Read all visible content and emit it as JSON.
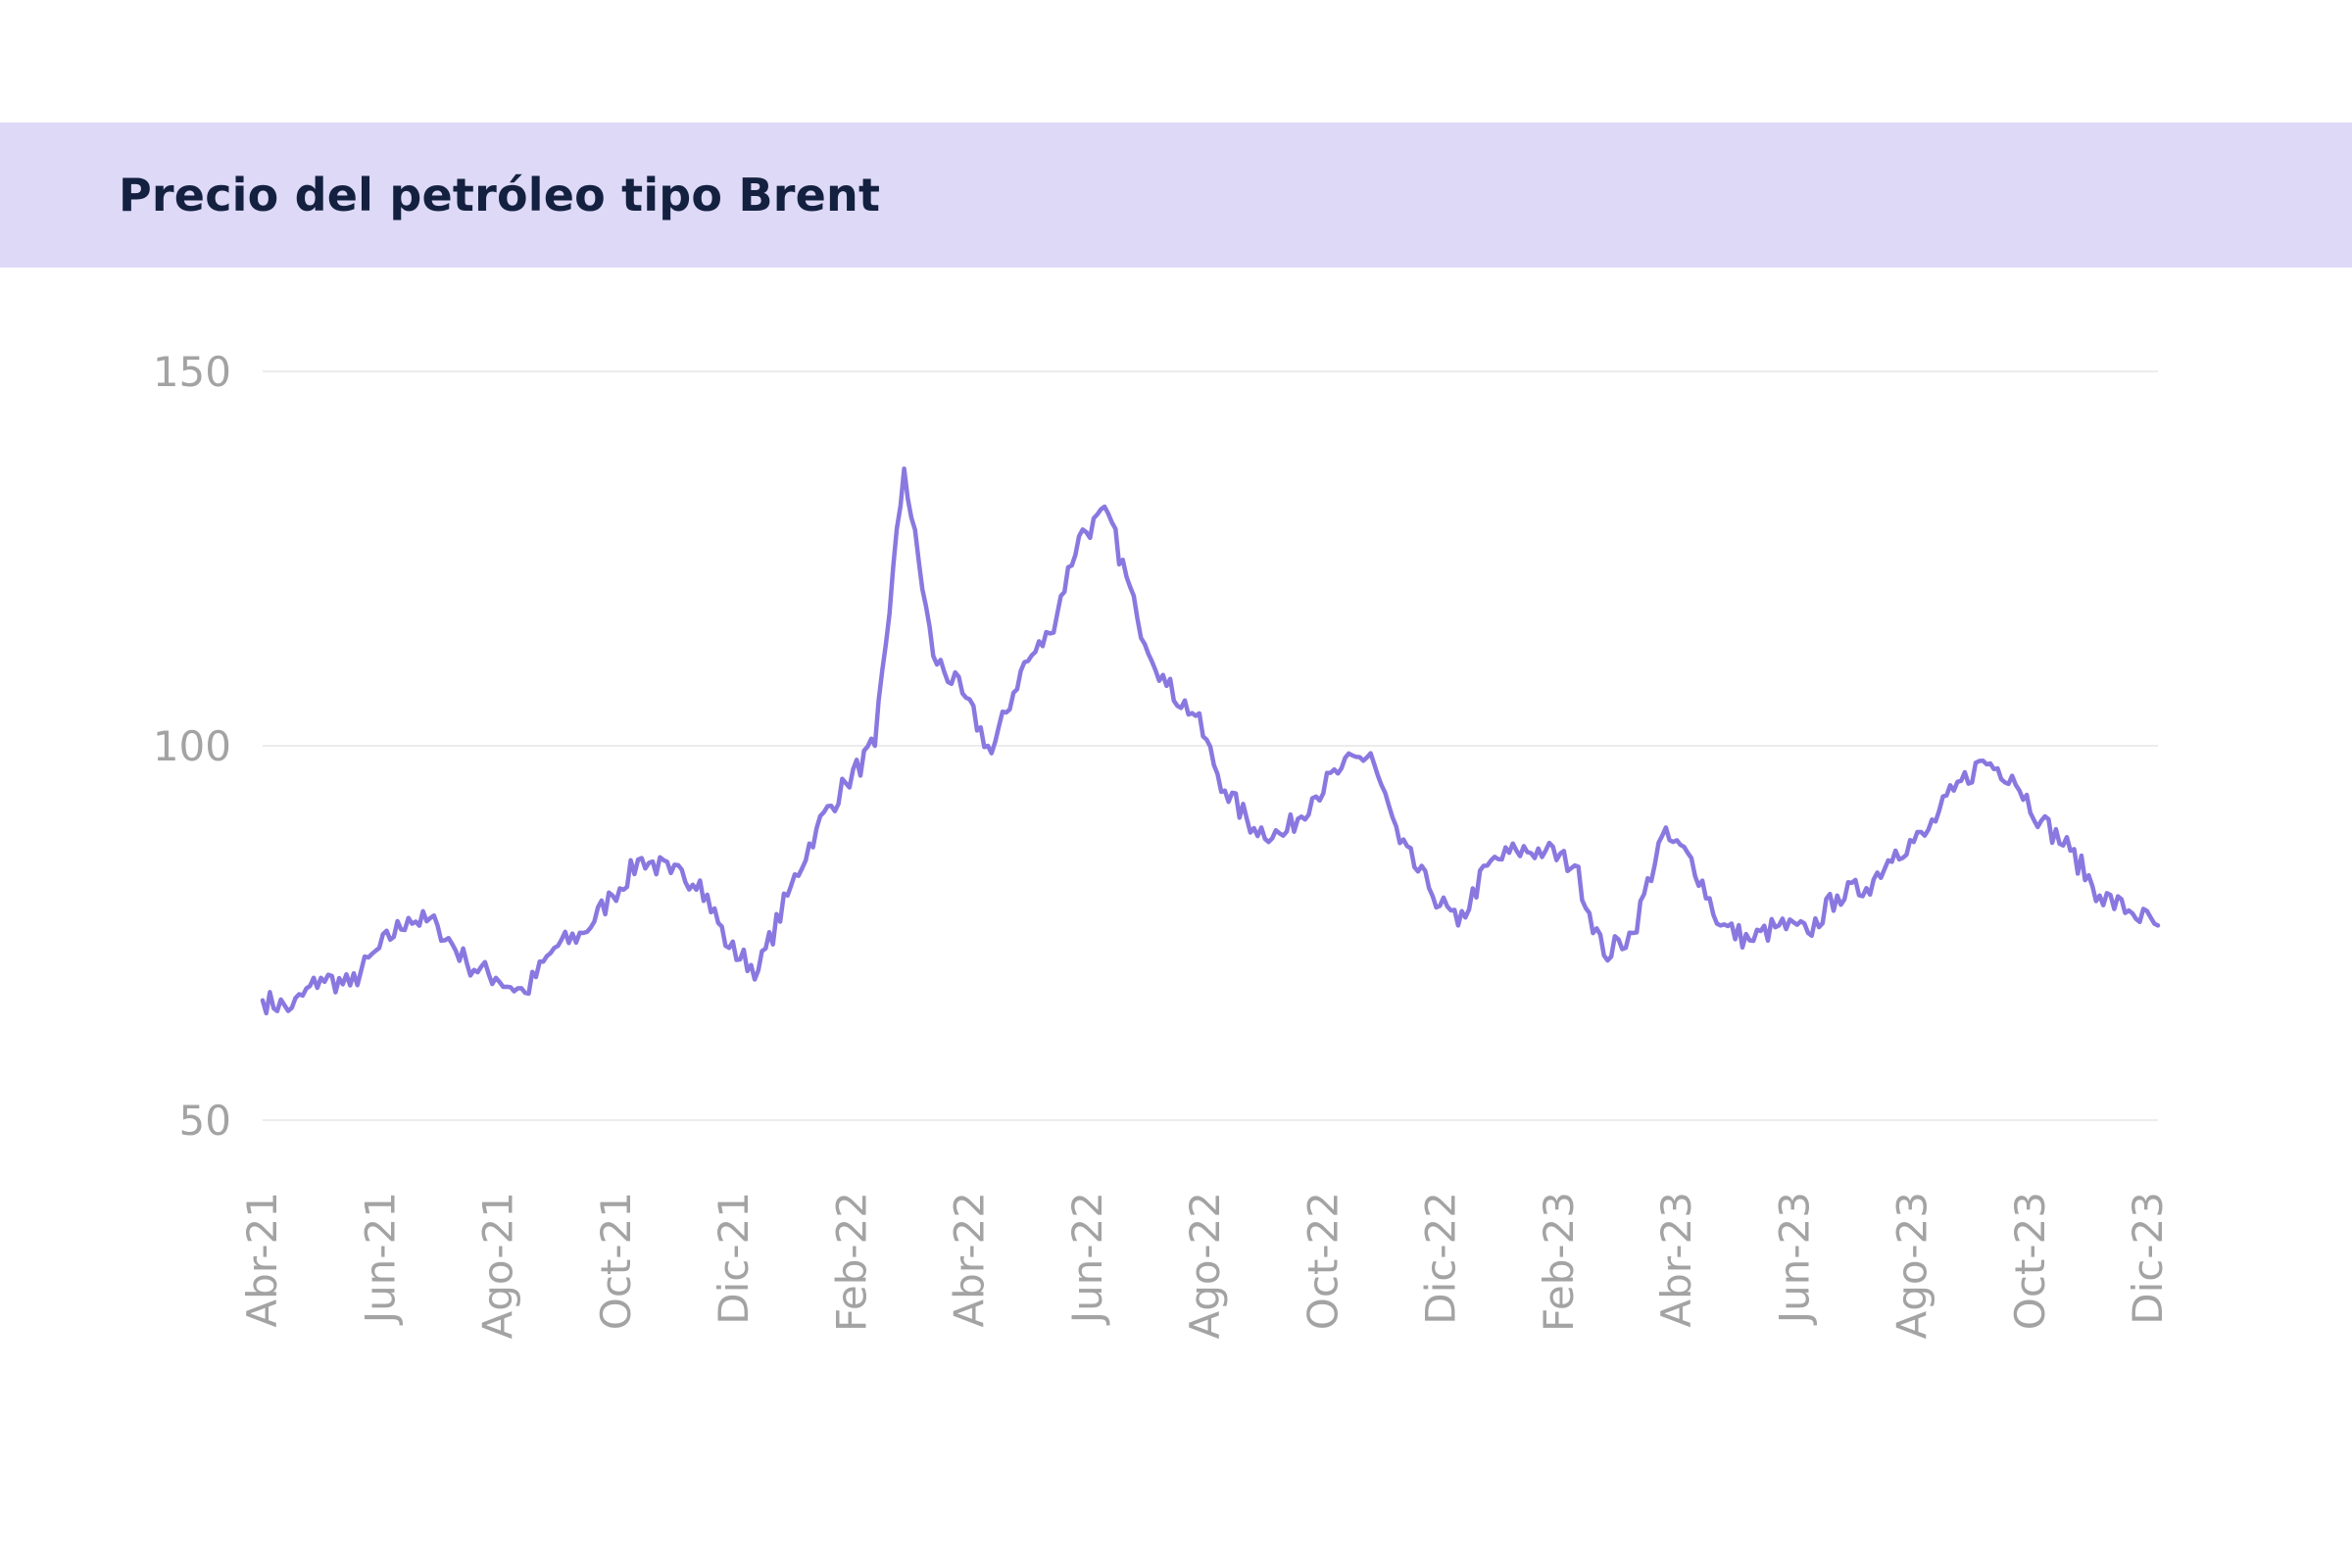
{
  "chart_data": {
    "type": "line",
    "title": "Precio del petróleo tipo Brent",
    "xlabel": "",
    "ylabel": "",
    "ylim": [
      50,
      150
    ],
    "yticks": [
      50,
      100,
      150
    ],
    "x_tick_labels": [
      "Abr-21",
      "Jun-21",
      "Ago-21",
      "Oct-21",
      "Dic-21",
      "Feb-22",
      "Abr-22",
      "Jun-22",
      "Ago-22",
      "Oct-22",
      "Dic-22",
      "Feb-23",
      "Abr-23",
      "Jun-23",
      "Ago-23",
      "Oct-23",
      "Dic-23"
    ],
    "grid": true,
    "legend": "none",
    "colors": {
      "line": "#8a78e0",
      "grid": "#ececec",
      "band": "#ddd9f7",
      "title": "#14203f",
      "ticks": "#a3a3a3"
    },
    "series": [
      {
        "x": [
          "Abr-21",
          "Abr-21",
          "May-21",
          "May-21",
          "Jun-21",
          "Jun-21",
          "Jul-21",
          "Jul-21",
          "Ago-21",
          "Ago-21",
          "Sep-21",
          "Sep-21",
          "Oct-21",
          "Oct-21",
          "Nov-21",
          "Nov-21",
          "Dic-21",
          "Dic-21",
          "Ene-22",
          "Ene-22",
          "Feb-22",
          "Feb-22",
          "Mar-22",
          "Mar-22",
          "Abr-22",
          "Abr-22",
          "May-22",
          "May-22",
          "Jun-22",
          "Jun-22",
          "Jul-22",
          "Jul-22",
          "Ago-22",
          "Ago-22",
          "Sep-22",
          "Sep-22",
          "Oct-22",
          "Oct-22",
          "Nov-22",
          "Nov-22",
          "Dic-22",
          "Dic-22",
          "Ene-23",
          "Ene-23",
          "Feb-23",
          "Feb-23",
          "Mar-23",
          "Mar-23",
          "Abr-23",
          "Abr-23",
          "May-23",
          "May-23",
          "Jun-23",
          "Jun-23",
          "Jul-23",
          "Jul-23",
          "Ago-23",
          "Ago-23",
          "Sep-23",
          "Sep-23",
          "Oct-23",
          "Oct-23",
          "Nov-23",
          "Nov-23",
          "Dic-23",
          "Dic-23"
        ],
        "values": [
          66,
          65,
          69,
          68,
          73,
          77,
          76,
          71,
          69,
          67,
          73,
          75,
          80,
          85,
          83,
          82,
          73,
          70,
          80,
          89,
          95,
          100,
          137,
          112,
          107,
          99,
          110,
          115,
          128,
          131,
          117,
          108,
          104,
          94,
          89,
          88,
          93,
          97,
          99,
          87,
          81,
          76,
          84,
          86,
          86,
          84,
          72,
          75,
          88,
          85,
          76,
          74,
          76,
          75,
          80,
          81,
          86,
          88,
          94,
          98,
          96,
          90,
          86,
          80,
          78,
          76
        ]
      }
    ]
  }
}
